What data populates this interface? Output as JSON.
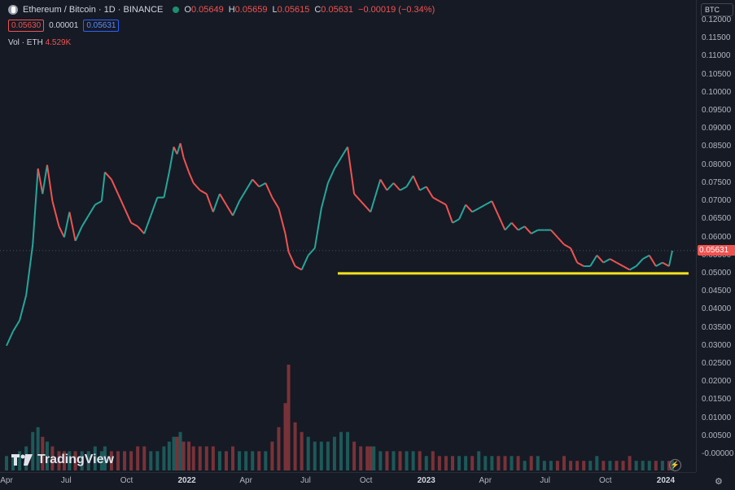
{
  "header": {
    "symbol": "Ethereum / Bitcoin · 1D · BINANCE",
    "o_label": "O",
    "o": "0.05649",
    "h_label": "H",
    "h": "0.05659",
    "l_label": "L",
    "l": "0.05615",
    "c_label": "C",
    "c": "0.05631",
    "change": "−0.00019 (−0.34%)",
    "sell_price": "0.05630",
    "spread": "0.00001",
    "buy_price": "0.05631"
  },
  "volume": {
    "label": "Vol · ETH",
    "value": "4.529K"
  },
  "watermark": "TradingView",
  "currency": "BTC",
  "current_price": "0.05631",
  "colors": {
    "up": "#26a69a",
    "down": "#ef5350",
    "support": "#f5e11d",
    "bg": "#161a25"
  },
  "chart_data": {
    "type": "line",
    "title": "Ethereum / Bitcoin · 1D · BINANCE",
    "ylim": [
      0.0,
      0.122
    ],
    "y_ticks": [
      "0.12000",
      "0.11500",
      "0.11000",
      "0.10500",
      "0.10000",
      "0.09500",
      "0.09000",
      "0.08500",
      "0.08000",
      "0.07500",
      "0.07000",
      "0.06500",
      "0.06000",
      "0.05500",
      "0.05000",
      "0.04500",
      "0.04000",
      "0.03500",
      "0.03000",
      "0.02500",
      "0.02000",
      "0.01500",
      "0.01000",
      "0.00500",
      "-0.00000"
    ],
    "x_ticks": [
      {
        "label": "Apr",
        "t": 0
      },
      {
        "label": "Jul",
        "t": 91
      },
      {
        "label": "Oct",
        "t": 183
      },
      {
        "label": "2022",
        "t": 275,
        "year": true
      },
      {
        "label": "Apr",
        "t": 365
      },
      {
        "label": "Jul",
        "t": 456
      },
      {
        "label": "Oct",
        "t": 548
      },
      {
        "label": "2023",
        "t": 640,
        "year": true
      },
      {
        "label": "Apr",
        "t": 730
      },
      {
        "label": "Jul",
        "t": 821
      },
      {
        "label": "Oct",
        "t": 913
      },
      {
        "label": "2024",
        "t": 1005,
        "year": true
      }
    ],
    "x_days": [
      0,
      10,
      20,
      30,
      40,
      48,
      55,
      62,
      70,
      80,
      88,
      96,
      105,
      115,
      125,
      135,
      145,
      150,
      160,
      170,
      180,
      190,
      200,
      210,
      220,
      230,
      240,
      248,
      255,
      260,
      265,
      270,
      278,
      285,
      295,
      305,
      315,
      325,
      335,
      345,
      355,
      365,
      375,
      385,
      395,
      405,
      415,
      425,
      430,
      440,
      450,
      460,
      470,
      480,
      490,
      500,
      510,
      520,
      530,
      540,
      550,
      555,
      560,
      570,
      580,
      590,
      600,
      610,
      620,
      630,
      640,
      650,
      660,
      670,
      680,
      690,
      700,
      710,
      720,
      730,
      740,
      750,
      760,
      770,
      780,
      790,
      800,
      810,
      820,
      830,
      840,
      850,
      860,
      870,
      880,
      890,
      900,
      910,
      920,
      930,
      940,
      950,
      960,
      970,
      980,
      990,
      1000,
      1010,
      1015
    ],
    "close": [
      0.03,
      0.034,
      0.037,
      0.044,
      0.058,
      0.079,
      0.072,
      0.08,
      0.07,
      0.063,
      0.06,
      0.067,
      0.059,
      0.063,
      0.066,
      0.069,
      0.07,
      0.078,
      0.076,
      0.072,
      0.068,
      0.064,
      0.063,
      0.061,
      0.066,
      0.071,
      0.071,
      0.078,
      0.085,
      0.083,
      0.086,
      0.082,
      0.078,
      0.075,
      0.073,
      0.072,
      0.067,
      0.072,
      0.069,
      0.066,
      0.07,
      0.073,
      0.076,
      0.074,
      0.075,
      0.071,
      0.068,
      0.061,
      0.056,
      0.052,
      0.051,
      0.055,
      0.057,
      0.068,
      0.075,
      0.079,
      0.082,
      0.085,
      0.072,
      0.07,
      0.068,
      0.067,
      0.07,
      0.076,
      0.073,
      0.075,
      0.073,
      0.074,
      0.077,
      0.073,
      0.074,
      0.071,
      0.07,
      0.069,
      0.064,
      0.065,
      0.069,
      0.067,
      0.068,
      0.069,
      0.07,
      0.066,
      0.062,
      0.064,
      0.062,
      0.063,
      0.061,
      0.062,
      0.062,
      0.062,
      0.06,
      0.058,
      0.057,
      0.053,
      0.052,
      0.052,
      0.055,
      0.053,
      0.054,
      0.053,
      0.052,
      0.051,
      0.052,
      0.054,
      0.055,
      0.052,
      0.053,
      0.052,
      0.0563
    ],
    "volume": [
      3,
      3,
      4,
      5,
      8,
      9,
      7,
      6,
      5,
      4,
      4,
      4,
      4,
      4,
      4,
      5,
      4,
      5,
      4,
      4,
      4,
      4,
      5,
      5,
      4,
      4,
      5,
      6,
      7,
      7,
      8,
      6,
      6,
      5,
      5,
      5,
      5,
      4,
      4,
      5,
      4,
      4,
      4,
      4,
      4,
      6,
      9,
      14,
      22,
      10,
      8,
      7,
      6,
      6,
      6,
      7,
      8,
      8,
      6,
      5,
      5,
      5,
      5,
      4,
      4,
      4,
      4,
      4,
      4,
      4,
      3,
      4,
      3,
      3,
      3,
      3,
      3,
      3,
      4,
      3,
      3,
      3,
      3,
      3,
      3,
      2,
      3,
      3,
      2,
      2,
      2,
      3,
      2,
      2,
      2,
      2,
      3,
      2,
      2,
      2,
      2,
      3,
      2,
      2,
      2,
      2,
      2,
      2,
      2
    ],
    "support_line": {
      "value": 0.05,
      "from_day": 505,
      "to_day": 1015
    }
  }
}
